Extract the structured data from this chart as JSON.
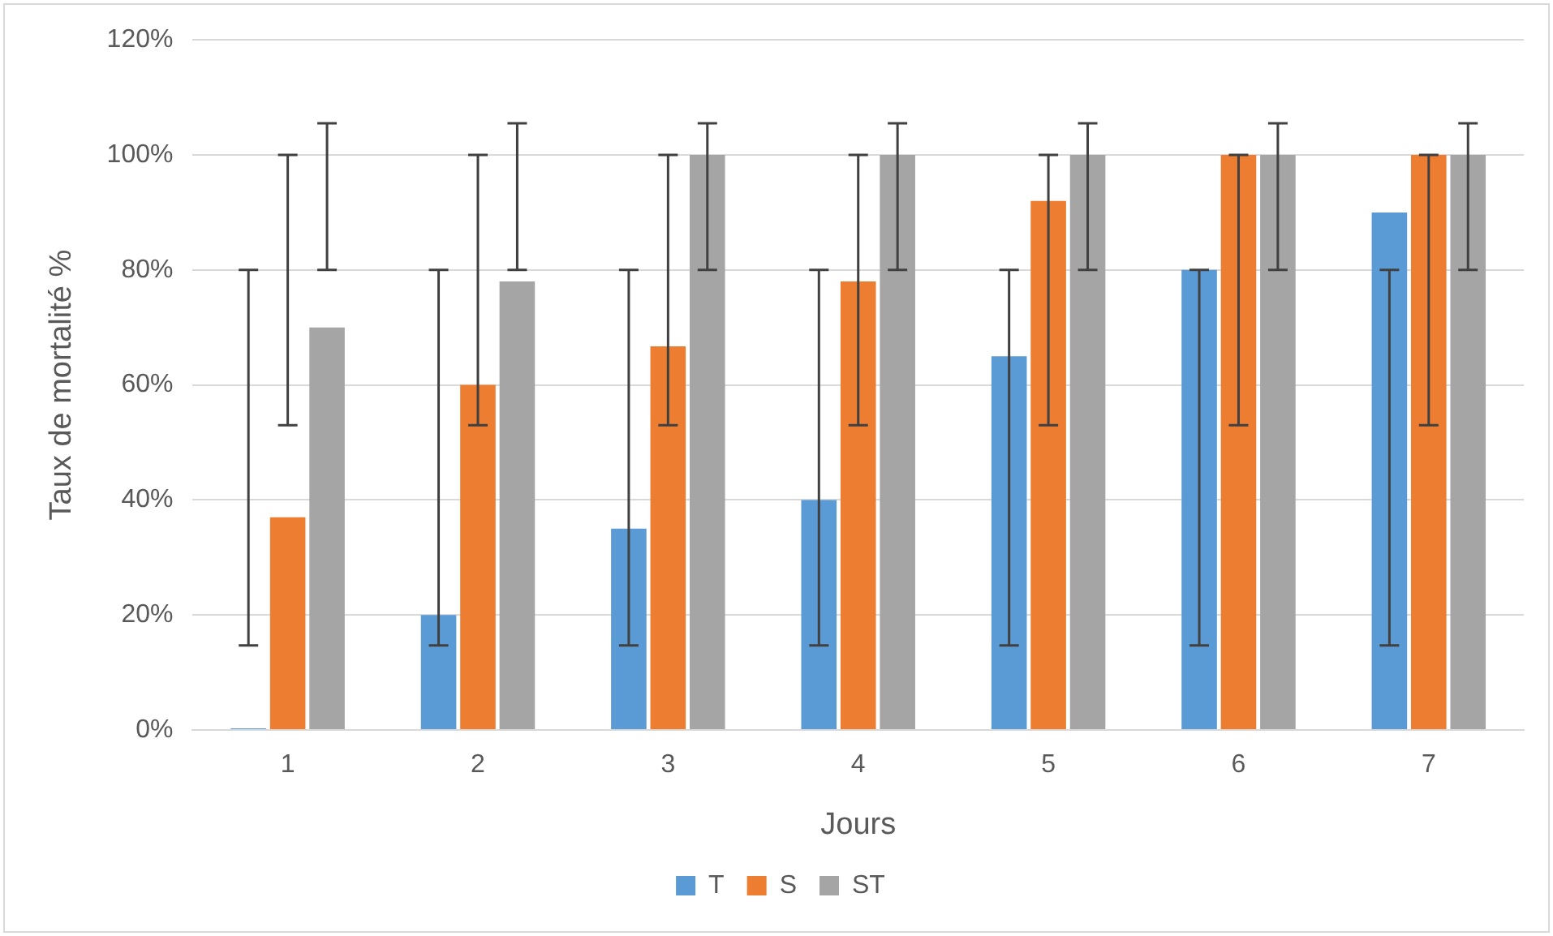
{
  "chart_data": {
    "type": "bar",
    "xlabel": "Jours",
    "ylabel": "Taux de mortalité %",
    "categories": [
      "1",
      "2",
      "3",
      "4",
      "5",
      "6",
      "7"
    ],
    "series": [
      {
        "name": "T",
        "color": "#5b9bd5",
        "values": [
          0,
          20,
          35,
          40,
          65,
          80,
          90
        ],
        "errors": [
          [
            14.7,
            80
          ],
          [
            14.7,
            80
          ],
          [
            14.7,
            80
          ],
          [
            14.7,
            80
          ],
          [
            14.7,
            80
          ],
          [
            14.7,
            80
          ],
          [
            14.7,
            80
          ]
        ]
      },
      {
        "name": "S",
        "color": "#ed7d31",
        "values": [
          37,
          60,
          66.7,
          78,
          92,
          100,
          100
        ],
        "errors": [
          [
            53,
            100
          ],
          [
            53,
            100
          ],
          [
            53,
            100
          ],
          [
            53,
            100
          ],
          [
            53,
            100
          ],
          [
            53,
            100
          ],
          [
            53,
            100
          ]
        ]
      },
      {
        "name": "ST",
        "color": "#a5a5a5",
        "values": [
          70,
          78,
          100,
          100,
          100,
          100,
          100
        ],
        "errors": [
          [
            80,
            105.5
          ],
          [
            80,
            105.5
          ],
          [
            80,
            105.5
          ],
          [
            80,
            105.5
          ],
          [
            80,
            105.5
          ],
          [
            80,
            105.5
          ],
          [
            80,
            105.5
          ]
        ]
      }
    ],
    "ylim": [
      0,
      120
    ],
    "yticks": [
      {
        "value": 0,
        "label": "0%"
      },
      {
        "value": 20,
        "label": "20%"
      },
      {
        "value": 40,
        "label": "40%"
      },
      {
        "value": 60,
        "label": "60%"
      },
      {
        "value": 80,
        "label": "80%"
      },
      {
        "value": 100,
        "label": "100%"
      },
      {
        "value": 120,
        "label": "120%"
      }
    ],
    "grid": "y",
    "legend": "bottom"
  }
}
